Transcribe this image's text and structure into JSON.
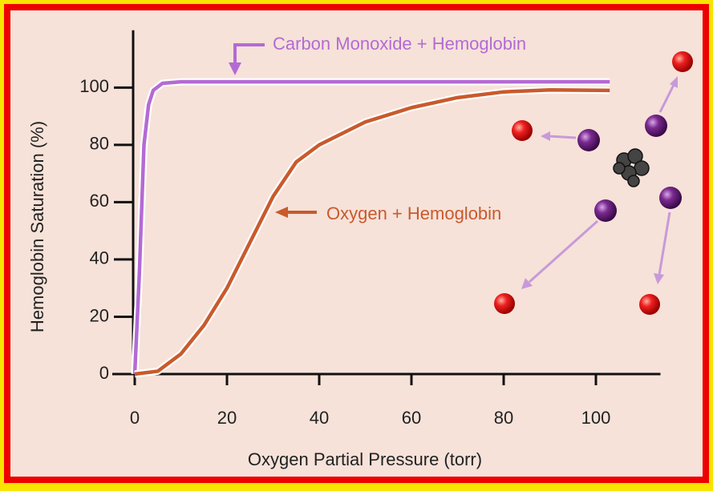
{
  "chart_data": {
    "type": "line",
    "xlabel": "Oxygen Partial Pressure (torr)",
    "ylabel": "Hemoglobin Saturation (%)",
    "xlim": [
      0,
      114
    ],
    "ylim": [
      0,
      120
    ],
    "xticks": [
      0,
      20,
      40,
      60,
      80,
      100
    ],
    "yticks": [
      0,
      20,
      40,
      60,
      80,
      100
    ],
    "series": [
      {
        "name": "Carbon Monoxide + Hemoglobin",
        "color": "#b46ad4",
        "x": [
          0,
          1,
          2,
          3,
          4,
          6,
          10,
          103
        ],
        "values": [
          0,
          35,
          80,
          94,
          99,
          101.5,
          102,
          102
        ]
      },
      {
        "name": "Oxygen + Hemoglobin",
        "color": "#c95a2c",
        "x": [
          0,
          5,
          10,
          15,
          20,
          25,
          30,
          35,
          40,
          50,
          60,
          70,
          80,
          90,
          103
        ],
        "values": [
          0,
          1,
          7,
          17,
          30,
          46,
          62,
          74,
          80,
          88,
          93,
          96.5,
          98.5,
          99.2,
          99
        ]
      }
    ]
  }
}
